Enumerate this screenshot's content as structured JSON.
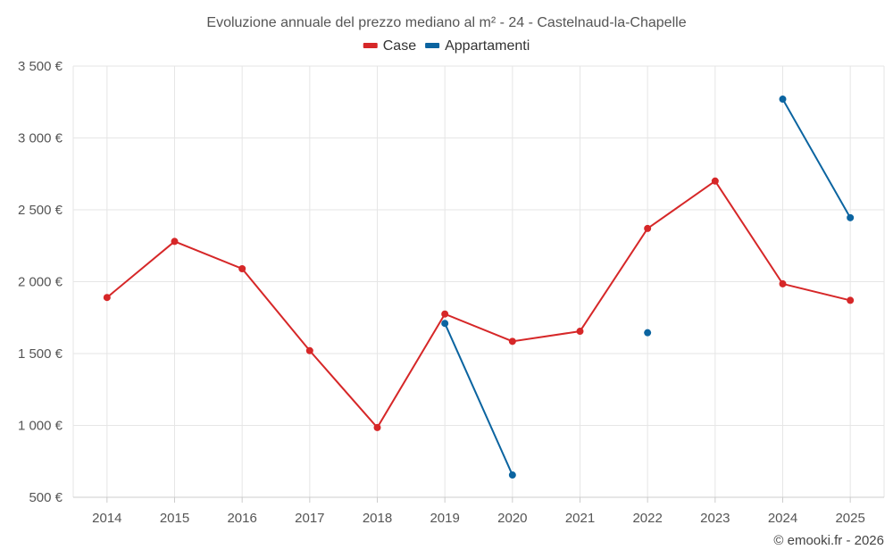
{
  "chart_data": {
    "type": "line",
    "title": "Evoluzione annuale del prezzo mediano al m² - 24 - Castelnaud-la-Chapelle",
    "categories": [
      "2014",
      "2015",
      "2016",
      "2017",
      "2018",
      "2019",
      "2020",
      "2021",
      "2022",
      "2023",
      "2024",
      "2025"
    ],
    "y_tick_values": [
      500,
      1000,
      1500,
      2000,
      2500,
      3000,
      3500
    ],
    "y_tick_labels": [
      "500 €",
      "1 000 €",
      "1 500 €",
      "2 000 €",
      "2 500 €",
      "3 000 €",
      "3 500 €"
    ],
    "ylim": [
      500,
      3500
    ],
    "grid": true,
    "legend_position": "top-center",
    "series": [
      {
        "name": "Case",
        "color": "#d62728",
        "values": [
          1890,
          2280,
          2090,
          1520,
          985,
          1775,
          1585,
          1655,
          2370,
          2700,
          1985,
          1870
        ]
      },
      {
        "name": "Appartamenti",
        "color": "#0b64a0",
        "values": [
          null,
          null,
          null,
          null,
          null,
          1710,
          655,
          null,
          1645,
          null,
          3270,
          2445
        ]
      }
    ],
    "credit": "© emooki.fr - 2026"
  }
}
